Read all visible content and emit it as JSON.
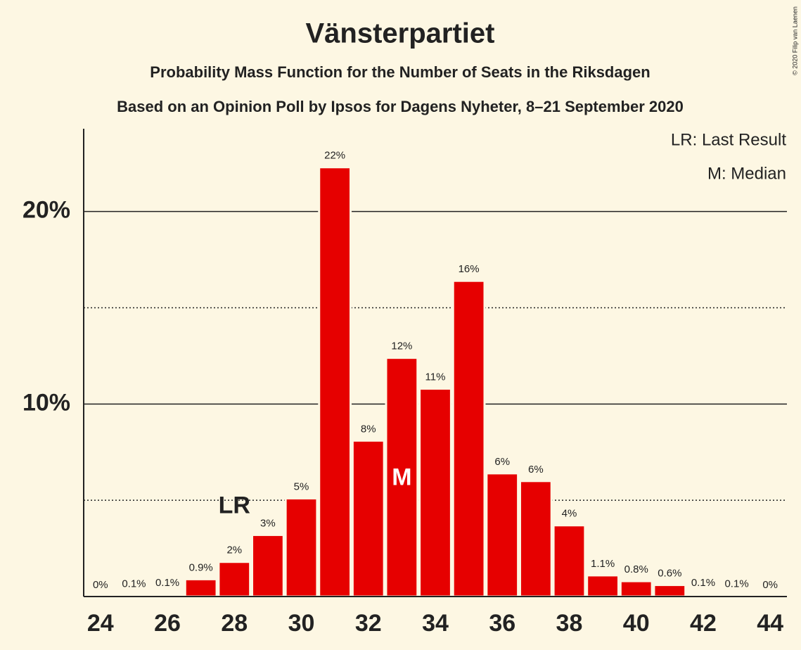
{
  "chart_data": {
    "type": "bar",
    "title": "Vänsterpartiet",
    "subtitles": [
      "Probability Mass Function for the Number of Seats in the Riksdagen",
      "Based on an Opinion Poll by Ipsos for Dagens Nyheter, 8–21 September 2020"
    ],
    "credit": "© 2020 Filip van Laenen",
    "legend": [
      "LR: Last Result",
      "M: Median"
    ],
    "x": [
      24,
      25,
      26,
      27,
      28,
      29,
      30,
      31,
      32,
      33,
      34,
      35,
      36,
      37,
      38,
      39,
      40,
      41,
      42,
      43,
      44
    ],
    "values": [
      0,
      0.06,
      0.1,
      0.9,
      1.8,
      3.2,
      5.1,
      22.3,
      8.1,
      12.4,
      10.8,
      16.4,
      6.4,
      6.0,
      3.7,
      1.1,
      0.8,
      0.6,
      0.1,
      0.05,
      0
    ],
    "value_labels": [
      "0%",
      "0.1%",
      "0.1%",
      "0.9%",
      "2%",
      "3%",
      "5%",
      "22%",
      "8%",
      "12%",
      "11%",
      "16%",
      "6%",
      "6%",
      "4%",
      "1.1%",
      "0.8%",
      "0.6%",
      "0.1%",
      "0.1%",
      "0%"
    ],
    "color": "#e60000",
    "xlim": [
      23.5,
      44.5
    ],
    "xticks": [
      24,
      26,
      28,
      30,
      32,
      34,
      36,
      38,
      40,
      42,
      44
    ],
    "ylim": [
      0,
      24.3
    ],
    "yticks": [
      {
        "value": 10,
        "label": "10%"
      },
      {
        "value": 20,
        "label": "20%"
      }
    ],
    "minor_grid": [
      5,
      15
    ],
    "annotations": [
      {
        "text": "LR",
        "x": 28
      },
      {
        "text": "M",
        "x": 33
      }
    ]
  }
}
